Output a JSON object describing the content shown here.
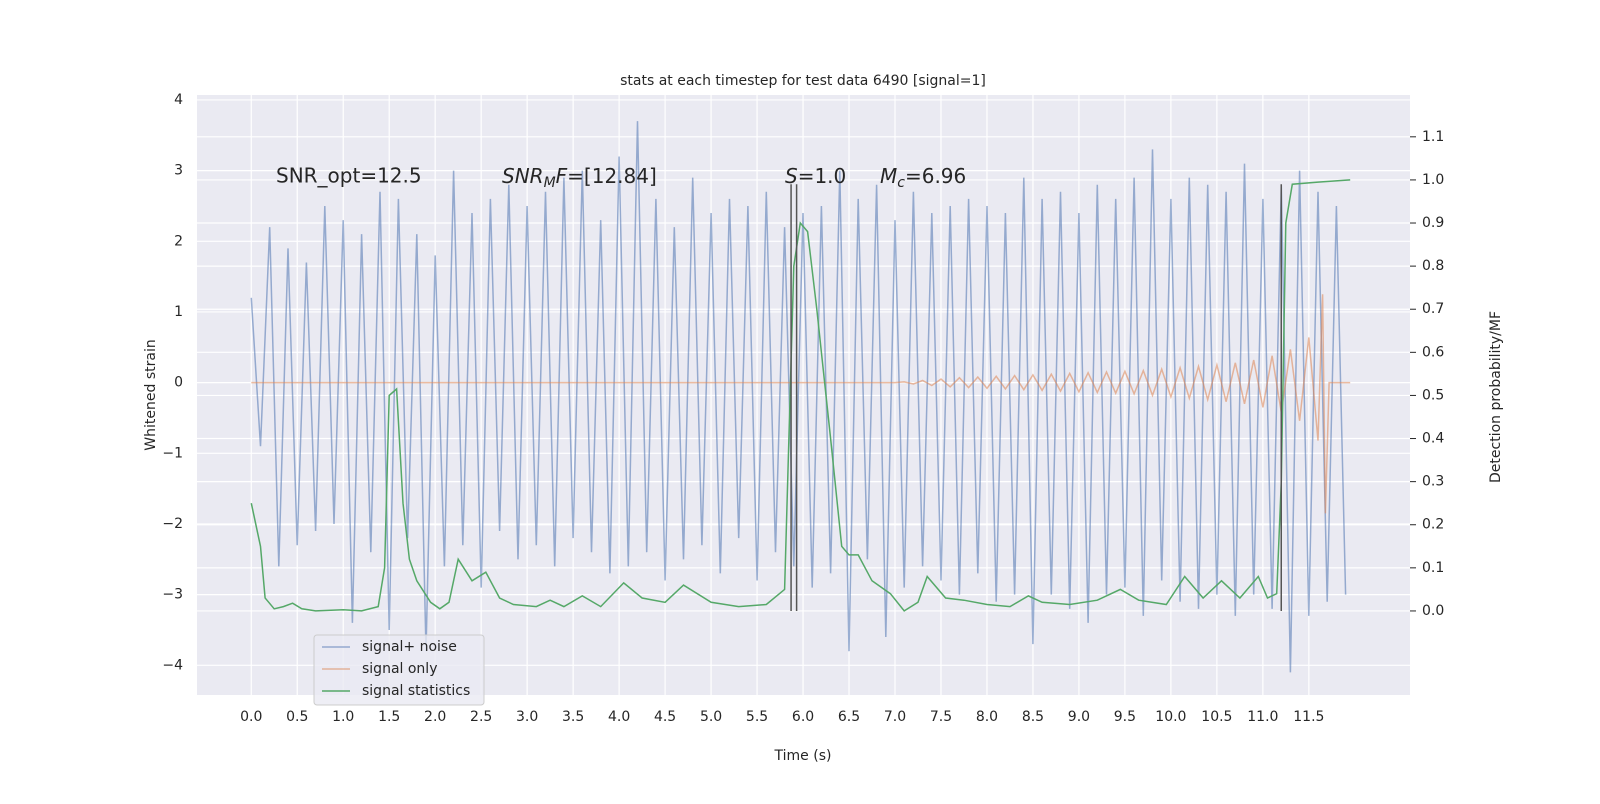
{
  "chart_data": {
    "type": "line",
    "title": "stats at each timestep for test data 6490 [signal=1]",
    "x_label": "Time (s)",
    "y_label": "Whitened strain",
    "y2_label": "Detection probability/MF",
    "xlim": [
      -0.59,
      12.6
    ],
    "ylim": [
      -4.42,
      4.07
    ],
    "y2lim": [
      -0.195,
      1.197
    ],
    "xticks": [
      {
        "value": 0,
        "label": "0.0"
      },
      0.5,
      {
        "value": 1,
        "label": "1.0"
      },
      1.5,
      {
        "value": 2,
        "label": "2.0"
      },
      2.5,
      {
        "value": 3,
        "label": "3.0"
      },
      3.5,
      {
        "value": 4,
        "label": "4.0"
      },
      4.5,
      {
        "value": 5,
        "label": "5.0"
      },
      5.5,
      {
        "value": 6,
        "label": "6.0"
      },
      6.5,
      {
        "value": 7,
        "label": "7.0"
      },
      7.5,
      {
        "value": 8,
        "label": "8.0"
      },
      8.5,
      {
        "value": 9,
        "label": "9.0"
      },
      9.5,
      {
        "value": 10,
        "label": "10.0"
      },
      10.5,
      {
        "value": 11,
        "label": "11.0"
      },
      11.5
    ],
    "yticks": [
      {
        "value": -4,
        "label": "−4"
      },
      {
        "value": -3,
        "label": "−3"
      },
      {
        "value": -2,
        "label": "−2"
      },
      {
        "value": -1,
        "label": "−1"
      },
      0,
      1,
      2,
      3,
      4
    ],
    "y2ticks": [
      {
        "value": 0,
        "label": "0.0"
      },
      0.1,
      0.2,
      0.3,
      0.4,
      0.5,
      0.6,
      0.7,
      0.8,
      0.9,
      {
        "value": 1,
        "label": "1.0"
      },
      1.1
    ],
    "grid": true,
    "legend": "lower left",
    "series": [
      {
        "name": "signal+ noise",
        "color": "#4c72b0",
        "axis": "y",
        "x": [
          0.0,
          0.1,
          0.2,
          0.3,
          0.4,
          0.5,
          0.6,
          0.7,
          0.8,
          0.9,
          1.0,
          1.1,
          1.2,
          1.3,
          1.4,
          1.5,
          1.6,
          1.7,
          1.8,
          1.9,
          2.0,
          2.1,
          2.2,
          2.3,
          2.4,
          2.5,
          2.6,
          2.7,
          2.8,
          2.9,
          3.0,
          3.1,
          3.2,
          3.3,
          3.4,
          3.5,
          3.6,
          3.7,
          3.8,
          3.9,
          4.0,
          4.1,
          4.2,
          4.3,
          4.4,
          4.5,
          4.6,
          4.7,
          4.8,
          4.9,
          5.0,
          5.1,
          5.2,
          5.3,
          5.4,
          5.5,
          5.6,
          5.7,
          5.8,
          5.9,
          6.0,
          6.1,
          6.2,
          6.3,
          6.4,
          6.5,
          6.6,
          6.7,
          6.8,
          6.9,
          7.0,
          7.1,
          7.2,
          7.3,
          7.4,
          7.5,
          7.6,
          7.7,
          7.8,
          7.9,
          8.0,
          8.1,
          8.2,
          8.3,
          8.4,
          8.5,
          8.6,
          8.7,
          8.8,
          8.9,
          9.0,
          9.1,
          9.2,
          9.3,
          9.4,
          9.5,
          9.6,
          9.7,
          9.8,
          9.9,
          10.0,
          10.1,
          10.2,
          10.3,
          10.4,
          10.5,
          10.6,
          10.7,
          10.8,
          10.9,
          11.0,
          11.1,
          11.2,
          11.3,
          11.4,
          11.5,
          11.6,
          11.7,
          11.8,
          11.9
        ],
        "values": [
          1.2,
          -0.9,
          2.2,
          -2.6,
          1.9,
          -2.3,
          1.7,
          -2.1,
          2.5,
          -2.0,
          2.3,
          -3.4,
          2.1,
          -2.4,
          2.7,
          -3.5,
          2.6,
          -2.2,
          2.1,
          -3.8,
          1.8,
          -2.6,
          3.0,
          -2.3,
          2.4,
          -2.9,
          2.6,
          -2.1,
          2.8,
          -2.5,
          2.5,
          -2.3,
          2.7,
          -2.6,
          2.9,
          -2.2,
          3.0,
          -2.4,
          2.3,
          -2.7,
          3.2,
          -2.6,
          3.7,
          -2.4,
          2.6,
          -2.8,
          2.2,
          -2.5,
          2.9,
          -2.3,
          2.4,
          -2.7,
          2.6,
          -2.2,
          2.5,
          -2.8,
          2.7,
          -2.4,
          2.2,
          -2.6,
          2.4,
          -2.9,
          2.5,
          -2.7,
          3.0,
          -3.8,
          2.6,
          -2.5,
          2.8,
          -3.6,
          2.3,
          -2.9,
          2.7,
          -2.6,
          2.4,
          -2.8,
          2.5,
          -3.0,
          2.6,
          -2.7,
          2.5,
          -3.1,
          2.4,
          -3.0,
          2.9,
          -3.7,
          2.6,
          -3.0,
          2.7,
          -3.2,
          2.4,
          -3.4,
          2.8,
          -3.0,
          2.6,
          -2.9,
          2.9,
          -3.3,
          3.3,
          -2.8,
          2.6,
          -3.1,
          2.9,
          -3.2,
          2.8,
          -3.0,
          2.7,
          -3.3,
          3.1,
          -3.0,
          2.6,
          -3.2,
          2.8,
          -4.1,
          3.0,
          -3.3,
          2.7,
          -3.1,
          2.5,
          -3.0
        ]
      },
      {
        "name": "signal only",
        "color": "#dd8452",
        "axis": "y",
        "x": [
          0.0,
          7.0,
          7.1,
          7.2,
          7.3,
          7.4,
          7.5,
          7.6,
          7.7,
          7.8,
          7.9,
          8.0,
          8.1,
          8.2,
          8.3,
          8.4,
          8.5,
          8.6,
          8.7,
          8.8,
          8.9,
          9.0,
          9.1,
          9.2,
          9.3,
          9.4,
          9.5,
          9.6,
          9.7,
          9.8,
          9.9,
          10.0,
          10.1,
          10.2,
          10.3,
          10.4,
          10.5,
          10.6,
          10.7,
          10.8,
          10.9,
          11.0,
          11.1,
          11.2,
          11.3,
          11.4,
          11.5,
          11.6,
          11.65,
          11.68,
          11.72,
          11.95
        ],
        "values": [
          0,
          0,
          0.01,
          -0.02,
          0.03,
          -0.04,
          0.05,
          -0.06,
          0.07,
          -0.07,
          0.08,
          -0.08,
          0.09,
          -0.09,
          0.1,
          -0.1,
          0.11,
          -0.11,
          0.12,
          -0.12,
          0.13,
          -0.13,
          0.14,
          -0.14,
          0.15,
          -0.15,
          0.16,
          -0.16,
          0.17,
          -0.18,
          0.19,
          -0.2,
          0.21,
          -0.22,
          0.23,
          -0.24,
          0.25,
          -0.27,
          0.28,
          -0.3,
          0.32,
          -0.35,
          0.38,
          -0.42,
          0.47,
          -0.54,
          0.64,
          -0.82,
          1.25,
          -1.85,
          0.0,
          0.0
        ]
      },
      {
        "name": "signal statistics",
        "color": "#55a868",
        "axis": "y2",
        "x": [
          0.0,
          0.1,
          0.15,
          0.25,
          0.35,
          0.45,
          0.55,
          0.7,
          1.0,
          1.2,
          1.38,
          1.45,
          1.5,
          1.58,
          1.65,
          1.72,
          1.8,
          1.95,
          2.05,
          2.15,
          2.25,
          2.4,
          2.55,
          2.7,
          2.85,
          3.1,
          3.25,
          3.4,
          3.6,
          3.8,
          4.05,
          4.25,
          4.5,
          4.7,
          5.0,
          5.3,
          5.6,
          5.8,
          5.9,
          5.97,
          6.05,
          6.15,
          6.3,
          6.42,
          6.5,
          6.6,
          6.75,
          6.95,
          7.1,
          7.25,
          7.35,
          7.55,
          7.75,
          8.0,
          8.25,
          8.45,
          8.6,
          8.9,
          9.2,
          9.45,
          9.65,
          9.95,
          10.15,
          10.35,
          10.55,
          10.75,
          10.95,
          11.05,
          11.15,
          11.2,
          11.25,
          11.32,
          11.6,
          11.95
        ],
        "values": [
          0.25,
          0.15,
          0.03,
          0.005,
          0.01,
          0.018,
          0.005,
          0.0,
          0.003,
          0.0,
          0.01,
          0.1,
          0.5,
          0.515,
          0.25,
          0.12,
          0.07,
          0.02,
          0.005,
          0.02,
          0.12,
          0.07,
          0.09,
          0.03,
          0.015,
          0.01,
          0.025,
          0.01,
          0.035,
          0.01,
          0.065,
          0.03,
          0.02,
          0.06,
          0.02,
          0.01,
          0.015,
          0.05,
          0.8,
          0.9,
          0.88,
          0.7,
          0.4,
          0.15,
          0.13,
          0.13,
          0.07,
          0.04,
          0.0,
          0.02,
          0.08,
          0.03,
          0.025,
          0.015,
          0.01,
          0.035,
          0.02,
          0.015,
          0.025,
          0.05,
          0.025,
          0.015,
          0.08,
          0.03,
          0.07,
          0.03,
          0.08,
          0.03,
          0.04,
          0.3,
          0.9,
          0.99,
          0.995,
          1.0
        ]
      }
    ],
    "vlines": {
      "x": [
        5.87,
        5.93,
        11.2
      ],
      "y2": [
        0,
        0.99
      ]
    },
    "annotations": [
      [
        "SNR_opt=12.5"
      ],
      [
        "SNR",
        "M",
        "F",
        "=[12.84]"
      ],
      [
        "S",
        "=1.0"
      ],
      [
        "M",
        "c",
        "=6.96"
      ]
    ]
  }
}
